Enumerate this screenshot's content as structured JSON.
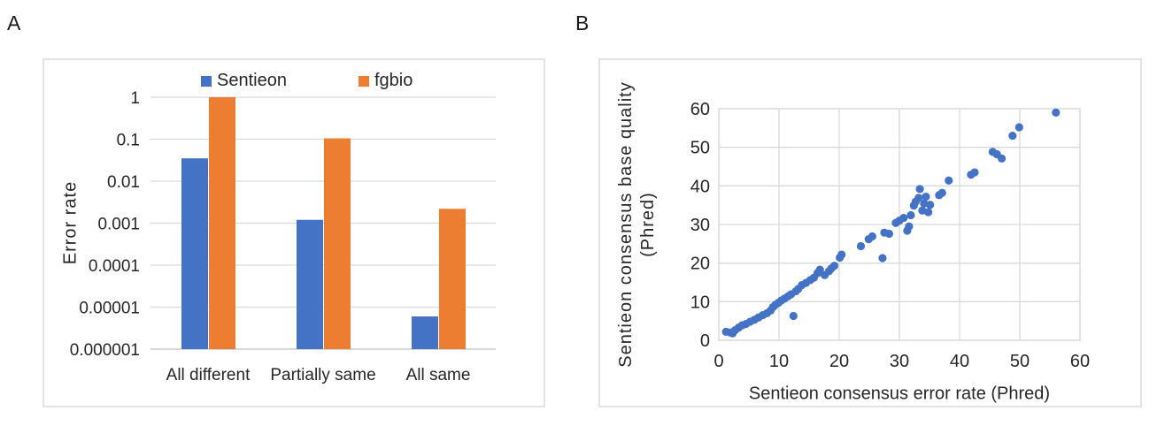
{
  "panels": {
    "a": {
      "label": "A"
    },
    "b": {
      "label": "B"
    }
  },
  "colors": {
    "series_blue": "#4472C4",
    "series_orange": "#ED7D31",
    "gridline": "#d9d9d9",
    "axis_line": "#bfbfbf",
    "text": "#262626",
    "panel_border": "#e3e3e3"
  },
  "chart_data": [
    {
      "type": "bar",
      "title": "",
      "ylabel": "Error rate",
      "xlabel": "",
      "y_scale": "log",
      "ylim": [
        1e-06,
        1
      ],
      "y_ticks": [
        "1",
        "0.1",
        "0.01",
        "0.001",
        "0.0001",
        "0.00001",
        "0.000001"
      ],
      "categories": [
        "All different",
        "Partially same",
        "All same"
      ],
      "series": [
        {
          "name": "Sentieon",
          "color": "#4472C4",
          "values": [
            0.035,
            0.0012,
            6e-06
          ]
        },
        {
          "name": "fgbio",
          "color": "#ED7D31",
          "values": [
            1.0,
            0.105,
            0.0022
          ]
        }
      ],
      "legend_position": "top",
      "grid": "horizontal"
    },
    {
      "type": "scatter",
      "title": "",
      "xlabel": "Sentieon consensus error rate (Phred)",
      "ylabel_line1": "Sentieon consensus base quality",
      "ylabel_line2": "(Phred)",
      "xlim": [
        0,
        60
      ],
      "ylim": [
        0,
        60
      ],
      "x_ticks": [
        0,
        10,
        20,
        30,
        40,
        50,
        60
      ],
      "y_ticks": [
        0,
        10,
        20,
        30,
        40,
        50,
        60
      ],
      "marker_color": "#4472C4",
      "grid": "both",
      "points": [
        [
          1.2,
          2.2
        ],
        [
          1.9,
          2.0
        ],
        [
          2.3,
          1.8
        ],
        [
          2.7,
          2.6
        ],
        [
          3.3,
          3.3
        ],
        [
          3.9,
          3.9
        ],
        [
          4.5,
          4.2
        ],
        [
          5.2,
          4.8
        ],
        [
          5.9,
          5.3
        ],
        [
          6.6,
          5.9
        ],
        [
          7.3,
          6.5
        ],
        [
          8.0,
          7.0
        ],
        [
          8.6,
          7.7
        ],
        [
          9.0,
          8.6
        ],
        [
          9.4,
          9.2
        ],
        [
          9.9,
          9.7
        ],
        [
          10.4,
          10.3
        ],
        [
          10.9,
          10.8
        ],
        [
          11.5,
          11.4
        ],
        [
          12.0,
          11.9
        ],
        [
          12.4,
          6.3
        ],
        [
          12.8,
          12.7
        ],
        [
          13.2,
          13.3
        ],
        [
          13.8,
          14.3
        ],
        [
          14.5,
          14.9
        ],
        [
          15.2,
          15.6
        ],
        [
          15.8,
          16.2
        ],
        [
          16.4,
          17.4
        ],
        [
          16.8,
          18.3
        ],
        [
          17.6,
          16.9
        ],
        [
          18.3,
          17.9
        ],
        [
          18.7,
          18.6
        ],
        [
          19.2,
          19.3
        ],
        [
          20.1,
          21.4
        ],
        [
          20.4,
          22.2
        ],
        [
          23.6,
          24.4
        ],
        [
          24.9,
          26.2
        ],
        [
          25.5,
          26.9
        ],
        [
          27.2,
          21.3
        ],
        [
          27.5,
          27.9
        ],
        [
          28.3,
          27.6
        ],
        [
          29.4,
          30.4
        ],
        [
          30.0,
          31.0
        ],
        [
          30.7,
          31.7
        ],
        [
          31.3,
          28.4
        ],
        [
          31.6,
          29.5
        ],
        [
          31.9,
          32.4
        ],
        [
          32.4,
          34.9
        ],
        [
          32.7,
          35.9
        ],
        [
          33.2,
          36.9
        ],
        [
          33.4,
          39.2
        ],
        [
          33.8,
          33.6
        ],
        [
          34.1,
          35.4
        ],
        [
          34.4,
          37.2
        ],
        [
          34.8,
          33.2
        ],
        [
          35.1,
          35.1
        ],
        [
          36.6,
          37.6
        ],
        [
          37.1,
          38.2
        ],
        [
          38.2,
          41.4
        ],
        [
          41.9,
          42.9
        ],
        [
          42.5,
          43.5
        ],
        [
          45.5,
          48.8
        ],
        [
          46.2,
          48.2
        ],
        [
          47.0,
          47.1
        ],
        [
          48.8,
          53.0
        ],
        [
          49.9,
          55.2
        ],
        [
          56.0,
          59.0
        ]
      ]
    }
  ]
}
